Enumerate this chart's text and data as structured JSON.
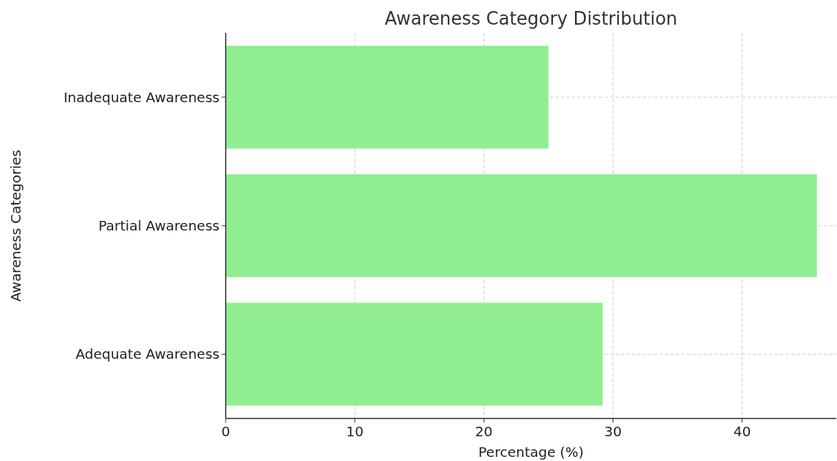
{
  "chart_data": {
    "type": "bar",
    "orientation": "horizontal",
    "title": "Awareness Category Distribution",
    "xlabel": "Percentage (%)",
    "ylabel": "Awareness Categories",
    "categories": [
      "Inadequate Awareness",
      "Partial Awareness",
      "Adequate Awareness"
    ],
    "values": [
      25.0,
      45.8,
      29.2
    ],
    "color": "#90ee90",
    "xlim": [
      0,
      47.3
    ],
    "xticks": [
      0,
      10,
      20,
      30,
      40
    ],
    "grid": true
  }
}
